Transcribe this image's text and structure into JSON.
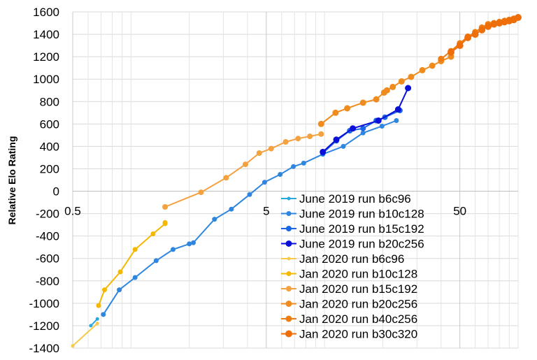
{
  "chart_data": {
    "type": "line",
    "title": "",
    "xlabel": "",
    "ylabel": "Relative Elo Rating",
    "xscale": "log",
    "xlim": [
      0.5,
      100
    ],
    "ylim": [
      -1400,
      1600
    ],
    "xticks": [
      "0.5",
      "5",
      "50"
    ],
    "yticks": [
      "-1400",
      "-1200",
      "-1000",
      "-800",
      "-600",
      "-400",
      "-200",
      "0",
      "200",
      "400",
      "600",
      "800",
      "1000",
      "1200",
      "1400",
      "1600"
    ],
    "grid": true,
    "legend_position": "bottom-right",
    "series": [
      {
        "name": "June 2019 run b6c96",
        "color": "#29a8e0",
        "marker_size": 2.5,
        "points": [
          [
            0.62,
            -1200
          ],
          [
            0.67,
            -1140
          ]
        ]
      },
      {
        "name": "June 2019 run b10c128",
        "color": "#2e86de",
        "marker_size": 3.5,
        "points": [
          [
            0.72,
            -1100
          ],
          [
            0.87,
            -880
          ],
          [
            1.05,
            -770
          ],
          [
            1.35,
            -620
          ],
          [
            1.65,
            -520
          ],
          [
            2.0,
            -470
          ],
          [
            2.1,
            -460
          ],
          [
            2.7,
            -250
          ],
          [
            3.3,
            -160
          ],
          [
            4.1,
            -30
          ],
          [
            4.9,
            80
          ],
          [
            5.9,
            150
          ],
          [
            6.9,
            220
          ],
          [
            7.8,
            250
          ],
          [
            9.8,
            330
          ],
          [
            12.5,
            400
          ],
          [
            15.8,
            520
          ],
          [
            19.8,
            580
          ],
          [
            23.5,
            630
          ]
        ]
      },
      {
        "name": "June 2019 run b15c192",
        "color": "#1a66e6",
        "marker_size": 4,
        "points": [
          [
            9.8,
            340
          ],
          [
            11.5,
            450
          ],
          [
            13.5,
            540
          ],
          [
            15.8,
            560
          ],
          [
            18.5,
            630
          ],
          [
            20.5,
            660
          ],
          [
            24.5,
            720
          ]
        ]
      },
      {
        "name": "June 2019 run b20c256",
        "color": "#0a10d8",
        "marker_size": 4.5,
        "points": [
          [
            9.8,
            350
          ],
          [
            11.5,
            460
          ],
          [
            14.0,
            560
          ],
          [
            19.0,
            630
          ],
          [
            24.0,
            730
          ],
          [
            27.0,
            920
          ]
        ]
      },
      {
        "name": "Jan 2020 run b6c96",
        "color": "#f7c94a",
        "marker_size": 2.5,
        "points": [
          [
            0.5,
            -1380
          ],
          [
            0.67,
            -1180
          ]
        ]
      },
      {
        "name": "Jan 2020 run b10c128",
        "color": "#f5b800",
        "marker_size": 3.5,
        "points": [
          [
            0.68,
            -1020
          ],
          [
            0.73,
            -880
          ],
          [
            0.88,
            -720
          ],
          [
            1.05,
            -520
          ],
          [
            1.3,
            -380
          ],
          [
            1.5,
            -290
          ],
          [
            1.5,
            -280
          ]
        ]
      },
      {
        "name": "Jan 2020 run b15c192",
        "color": "#f4a140",
        "marker_size": 4,
        "points": [
          [
            1.5,
            -140
          ],
          [
            2.3,
            -10
          ],
          [
            3.1,
            120
          ],
          [
            3.9,
            240
          ],
          [
            4.6,
            340
          ],
          [
            5.3,
            380
          ],
          [
            6.3,
            440
          ],
          [
            7.3,
            470
          ],
          [
            8.4,
            490
          ],
          [
            9.6,
            510
          ]
        ]
      },
      {
        "name": "Jan 2020 run b20c256",
        "color": "#f08c1e",
        "marker_size": 4.5,
        "points": [
          [
            9.6,
            600
          ],
          [
            11.4,
            700
          ],
          [
            13.1,
            740
          ],
          [
            15.8,
            790
          ],
          [
            18.5,
            820
          ],
          [
            20.3,
            880
          ],
          [
            21.0,
            900
          ],
          [
            22.5,
            930
          ],
          [
            25.0,
            980
          ],
          [
            28.0,
            1020
          ],
          [
            32.0,
            1080
          ],
          [
            36.0,
            1120
          ],
          [
            40.0,
            1160
          ],
          [
            45.0,
            1200
          ]
        ]
      },
      {
        "name": "Jan 2020 run b40c256",
        "color": "#ef7d12",
        "marker_size": 4.5,
        "points": [
          [
            40.0,
            1180
          ],
          [
            45.0,
            1250
          ],
          [
            50.0,
            1320
          ],
          [
            55.0,
            1380
          ],
          [
            60.0,
            1420
          ],
          [
            65.0,
            1460
          ],
          [
            70.0,
            1490
          ],
          [
            75.0,
            1500
          ],
          [
            80.0,
            1510
          ],
          [
            85.0,
            1520
          ],
          [
            90.0,
            1530
          ],
          [
            95.0,
            1540
          ]
        ]
      },
      {
        "name": "Jan 2020 run b30c320",
        "color": "#ee6e0a",
        "marker_size": 5,
        "points": [
          [
            45.0,
            1240
          ],
          [
            50.0,
            1300
          ],
          [
            55.0,
            1370
          ],
          [
            60.0,
            1400
          ],
          [
            65.0,
            1440
          ],
          [
            70.0,
            1470
          ],
          [
            75.0,
            1490
          ],
          [
            80.0,
            1500
          ],
          [
            85.0,
            1510
          ],
          [
            90.0,
            1520
          ],
          [
            95.0,
            1530
          ],
          [
            100.0,
            1550
          ]
        ]
      }
    ]
  }
}
